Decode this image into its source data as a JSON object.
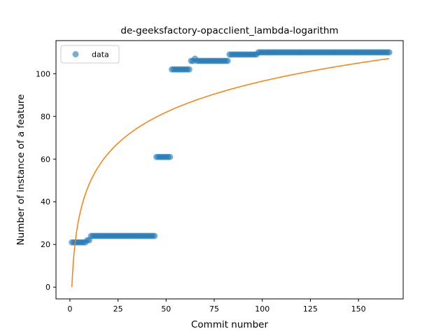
{
  "chart_data": {
    "type": "scatter",
    "title": "de-geeksfactory-opacclient_lambda-logarithm",
    "xlabel": "Commit number",
    "ylabel": "Number of instance of a feature",
    "xlim": [
      -7.25,
      173.25
    ],
    "ylim": [
      -5.5,
      115.5
    ],
    "xticks": [
      0,
      25,
      50,
      75,
      100,
      125,
      150
    ],
    "yticks": [
      0,
      20,
      40,
      60,
      80,
      100
    ],
    "grid": false,
    "legend": {
      "placement": "top-left",
      "entries": [
        "data"
      ]
    },
    "colors": {
      "data": "#1f77b4",
      "fit": "#ff7f0e"
    },
    "series": [
      {
        "name": "data",
        "kind": "scatter",
        "segments": [
          {
            "x_from": 1,
            "x_to": 2,
            "y": 21
          },
          {
            "x_from": 3,
            "x_to": 8,
            "y": 21
          },
          {
            "x_from": 9,
            "x_to": 10,
            "y": 22
          },
          {
            "x_from": 11,
            "x_to": 44,
            "y": 24
          },
          {
            "x_from": 45,
            "x_to": 52,
            "y": 61
          },
          {
            "x_from": 53,
            "x_to": 62,
            "y": 102
          },
          {
            "x_from": 63,
            "x_to": 64,
            "y": 106
          },
          {
            "x_from": 65,
            "x_to": 65,
            "y": 107
          },
          {
            "x_from": 66,
            "x_to": 82,
            "y": 106
          },
          {
            "x_from": 83,
            "x_to": 97,
            "y": 109
          },
          {
            "x_from": 98,
            "x_to": 166,
            "y": 110
          }
        ]
      },
      {
        "name": "",
        "kind": "line",
        "function": "a*ln(x)",
        "x_from": 1,
        "x_to": 166,
        "a": 20.95
      }
    ]
  }
}
